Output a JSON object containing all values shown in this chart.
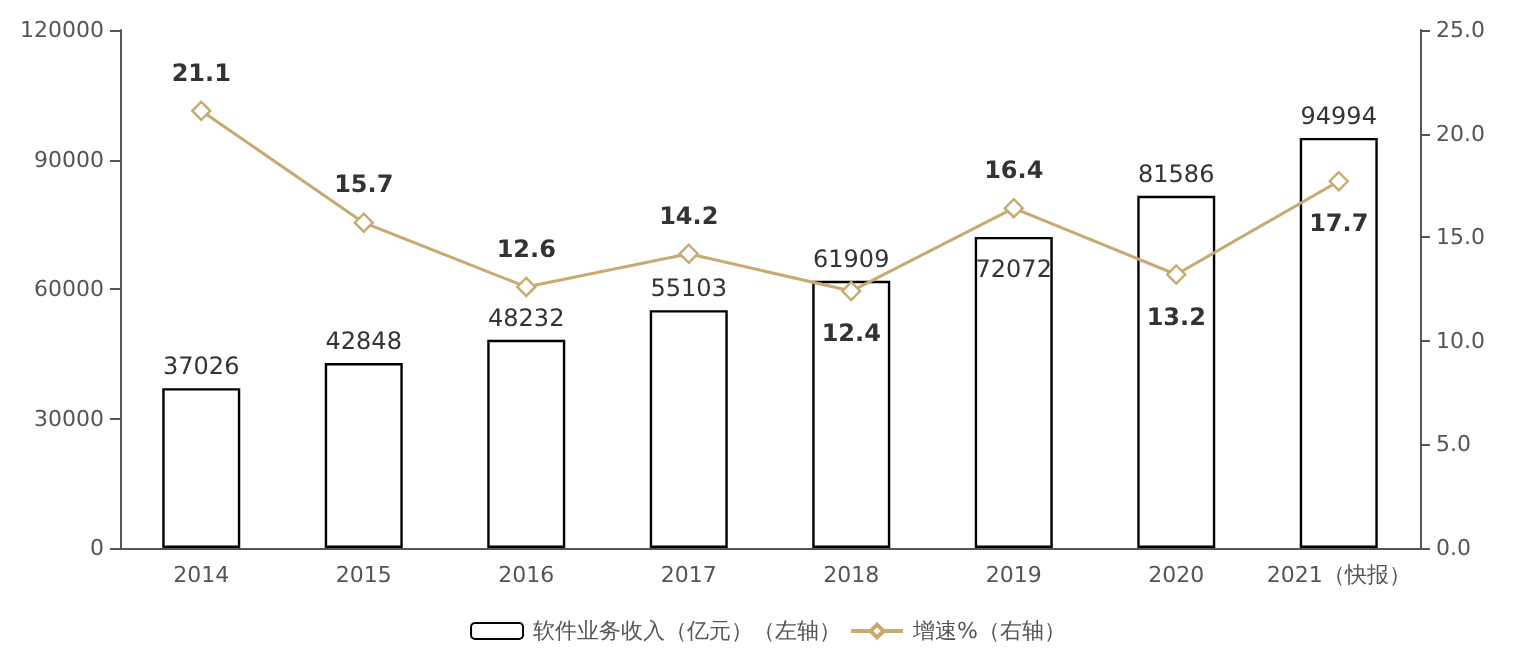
{
  "chart_data": {
    "type": "bar",
    "categories": [
      "2014",
      "2015",
      "2016",
      "2017",
      "2018",
      "2019",
      "2020",
      "2021（快报）"
    ],
    "series": [
      {
        "name": "软件业务收入（亿元）（左轴）",
        "color": "#ffffff",
        "values": [
          37026,
          42848,
          48232,
          55103,
          61909,
          72072,
          81586,
          94994
        ]
      },
      {
        "name": "增速%（右轴）",
        "type": "line",
        "axis": "y2",
        "color": "#c8a96e",
        "marker": "diamond",
        "values": [
          21.1,
          15.7,
          12.6,
          14.2,
          12.4,
          16.4,
          13.2,
          17.7
        ]
      }
    ],
    "ylim": [
      0,
      120000
    ],
    "yticks": [
      0,
      30000,
      60000,
      90000,
      120000
    ],
    "y2lim": [
      0,
      25
    ],
    "y2ticks": [
      {
        "value": 0,
        "label": "0.0"
      },
      {
        "value": 5,
        "label": "5.0"
      },
      {
        "value": 10,
        "label": "10.0"
      },
      {
        "value": 15,
        "label": "15.0"
      },
      {
        "value": 20,
        "label": "20.0"
      },
      {
        "value": 25,
        "label": "25.0"
      }
    ],
    "data_labels": true,
    "grid": false,
    "legend": "bottom"
  }
}
